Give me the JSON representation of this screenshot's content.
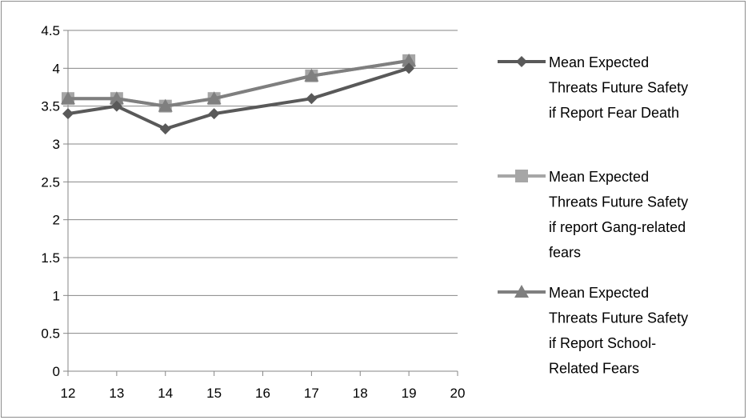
{
  "chart_data": {
    "type": "line",
    "title": "",
    "xlabel": "",
    "ylabel": "",
    "xlim": [
      12,
      20
    ],
    "ylim": [
      0,
      4.5
    ],
    "x_ticks": [
      "12",
      "13",
      "14",
      "15",
      "16",
      "17",
      "18",
      "19",
      "20"
    ],
    "y_ticks": [
      "0",
      "0.5",
      "1",
      "1.5",
      "2",
      "2.5",
      "3",
      "3.5",
      "4",
      "4.5"
    ],
    "grid": "horizontal",
    "legend_position": "right",
    "series": [
      {
        "name": "Mean Expected Threats Future Safety if Report Fear Death",
        "legend_lines": [
          "Mean Expected",
          "Threats Future Safety",
          "if Report Fear Death"
        ],
        "marker": "diamond",
        "color": "#595959",
        "x": [
          12,
          13,
          14,
          15,
          17,
          19
        ],
        "y": [
          3.4,
          3.5,
          3.2,
          3.4,
          3.6,
          4.0
        ]
      },
      {
        "name": "Mean Expected Threats Future Safety if report Gang-related fears",
        "legend_lines": [
          "Mean Expected",
          "Threats Future Safety",
          "if report Gang-related",
          "fears"
        ],
        "marker": "square",
        "color": "#a6a6a6",
        "x": [
          12,
          13,
          14,
          15,
          17,
          19
        ],
        "y": [
          3.6,
          3.6,
          3.5,
          3.6,
          3.9,
          4.1
        ]
      },
      {
        "name": "Mean Expected Threats Future Safety if Report School-Related Fears",
        "legend_lines": [
          "Mean Expected",
          "Threats Future Safety",
          "if Report School-",
          "Related Fears"
        ],
        "marker": "triangle",
        "color": "#7f7f7f",
        "x": [
          12,
          13,
          14,
          15,
          17,
          19
        ],
        "y": [
          3.6,
          3.6,
          3.5,
          3.6,
          3.9,
          4.1
        ]
      }
    ]
  }
}
